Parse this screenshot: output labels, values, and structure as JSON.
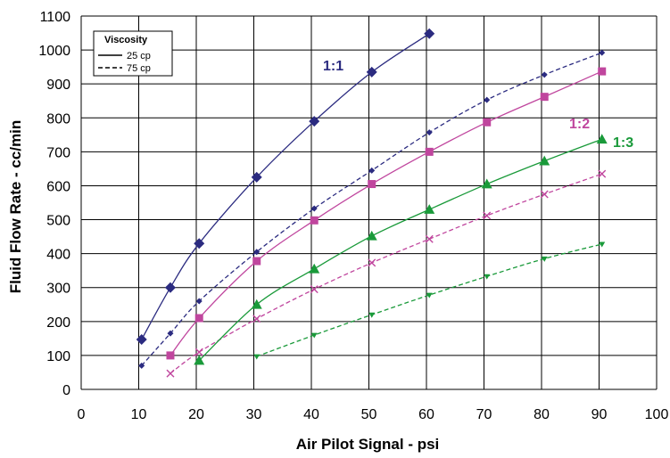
{
  "chart_data": {
    "type": "line",
    "title": "",
    "xlabel": "Air Pilot Signal - psi",
    "ylabel": "Fluid Flow Rate - cc/min",
    "xlim": [
      0,
      100
    ],
    "ylim": [
      0,
      1100
    ],
    "x_ticks": [
      0,
      10,
      20,
      30,
      40,
      50,
      60,
      70,
      80,
      90,
      100
    ],
    "y_ticks": [
      0,
      100,
      200,
      300,
      400,
      500,
      600,
      700,
      800,
      900,
      1000,
      1100
    ],
    "grid": true,
    "legend": {
      "title": "Viscosity",
      "placement": "top-left",
      "entries": [
        {
          "label": "25 cp",
          "style": "solid"
        },
        {
          "label": "75 cp",
          "style": "dashed"
        }
      ]
    },
    "annotations": [
      {
        "text": "1:1",
        "color": "#2b2b80"
      },
      {
        "text": "1:2",
        "color": "#c0469e"
      },
      {
        "text": "1:3",
        "color": "#1a9a3a"
      }
    ],
    "series": [
      {
        "ratio": "1:1",
        "viscosity": "25 cp",
        "style": "solid",
        "marker": "diamond",
        "color": "#2b2b80",
        "x": [
          10.5,
          15.5,
          20.5,
          30.5,
          40.5,
          50.5,
          60.5
        ],
        "y": [
          147,
          300,
          430,
          625,
          790,
          935,
          1048
        ]
      },
      {
        "ratio": "1:1",
        "viscosity": "75 cp",
        "style": "dashed",
        "marker": "small-diamond",
        "color": "#2b2b80",
        "x": [
          10.5,
          15.5,
          20.5,
          30.5,
          40.5,
          50.5,
          60.5,
          70.5,
          80.5,
          90.5
        ],
        "y": [
          70,
          165,
          260,
          405,
          533,
          645,
          757,
          853,
          927,
          992
        ]
      },
      {
        "ratio": "1:2",
        "viscosity": "25 cp",
        "style": "solid",
        "marker": "square",
        "color": "#c0469e",
        "x": [
          15.5,
          20.5,
          30.5,
          40.5,
          50.5,
          60.5,
          70.5,
          80.5,
          90.5
        ],
        "y": [
          100,
          210,
          378,
          498,
          605,
          700,
          787,
          862,
          937
        ]
      },
      {
        "ratio": "1:2",
        "viscosity": "75 cp",
        "style": "dashed",
        "marker": "x",
        "color": "#c0469e",
        "x": [
          15.5,
          20.5,
          30.5,
          40.5,
          50.5,
          60.5,
          70.5,
          80.5,
          90.5
        ],
        "y": [
          47,
          110,
          208,
          295,
          373,
          443,
          512,
          575,
          635
        ]
      },
      {
        "ratio": "1:3",
        "viscosity": "25 cp",
        "style": "solid",
        "marker": "triangle",
        "color": "#1a9a3a",
        "x": [
          20.5,
          30.5,
          40.5,
          50.5,
          60.5,
          70.5,
          80.5,
          90.5
        ],
        "y": [
          85,
          250,
          355,
          452,
          530,
          605,
          673,
          737
        ]
      },
      {
        "ratio": "1:3",
        "viscosity": "75 cp",
        "style": "dashed",
        "marker": "small-triangle-down",
        "color": "#1a9a3a",
        "x": [
          30.5,
          40.5,
          50.5,
          60.5,
          70.5,
          80.5,
          90.5
        ],
        "y": [
          97,
          160,
          220,
          278,
          333,
          385,
          428
        ]
      }
    ]
  }
}
